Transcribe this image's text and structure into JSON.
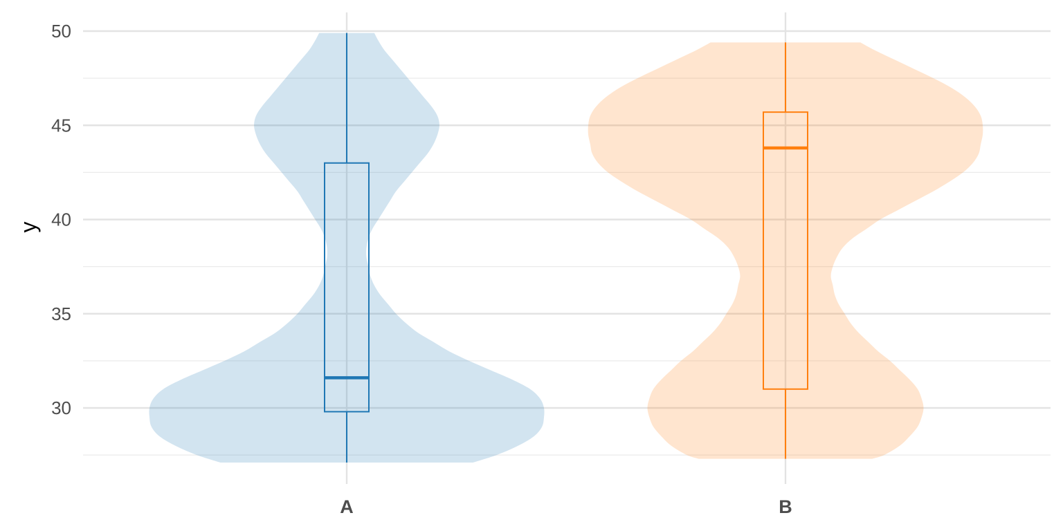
{
  "chart_data": {
    "type": "violin",
    "title": "",
    "xlabel": "",
    "ylabel": "y",
    "ylim": [
      26.2,
      50.6
    ],
    "y_ticks": [
      30,
      35,
      40,
      45,
      50
    ],
    "y_minor_ticks": [
      27.5,
      32.5,
      37.5,
      42.5,
      47.5
    ],
    "grid": true,
    "legend": "none",
    "categories": [
      "A",
      "B"
    ],
    "series": [
      {
        "category": "A",
        "fill_color": "#1f77b4",
        "fill_opacity": 0.2,
        "line_color": "#1f77b4",
        "min": 27.1,
        "q1": 29.8,
        "median": 31.6,
        "q3": 43.0,
        "max": 49.9,
        "density": [
          [
            27.1,
            0.64
          ],
          [
            27.5,
            0.76
          ],
          [
            28.0,
            0.87
          ],
          [
            28.5,
            0.95
          ],
          [
            29.0,
            0.99
          ],
          [
            29.5,
            1.0
          ],
          [
            30.0,
            1.0
          ],
          [
            30.5,
            0.98
          ],
          [
            31.0,
            0.93
          ],
          [
            31.5,
            0.84
          ],
          [
            32.0,
            0.73
          ],
          [
            32.5,
            0.62
          ],
          [
            33.0,
            0.52
          ],
          [
            33.5,
            0.44
          ],
          [
            34.0,
            0.36
          ],
          [
            34.5,
            0.3
          ],
          [
            35.0,
            0.25
          ],
          [
            35.5,
            0.21
          ],
          [
            36.0,
            0.17
          ],
          [
            36.5,
            0.14
          ],
          [
            37.0,
            0.12
          ],
          [
            37.5,
            0.11
          ],
          [
            38.0,
            0.1
          ],
          [
            38.5,
            0.1
          ],
          [
            39.0,
            0.11
          ],
          [
            39.5,
            0.13
          ],
          [
            40.0,
            0.16
          ],
          [
            40.5,
            0.19
          ],
          [
            41.0,
            0.22
          ],
          [
            41.5,
            0.25
          ],
          [
            42.0,
            0.29
          ],
          [
            42.5,
            0.33
          ],
          [
            43.0,
            0.37
          ],
          [
            43.5,
            0.41
          ],
          [
            44.0,
            0.44
          ],
          [
            44.5,
            0.46
          ],
          [
            45.0,
            0.47
          ],
          [
            45.5,
            0.46
          ],
          [
            46.0,
            0.43
          ],
          [
            46.5,
            0.39
          ],
          [
            47.0,
            0.35
          ],
          [
            47.5,
            0.31
          ],
          [
            48.0,
            0.27
          ],
          [
            48.5,
            0.23
          ],
          [
            49.0,
            0.19
          ],
          [
            49.5,
            0.16
          ],
          [
            49.9,
            0.14
          ]
        ]
      },
      {
        "category": "B",
        "fill_color": "#ff7f0e",
        "fill_opacity": 0.2,
        "line_color": "#ff7f0e",
        "min": 27.3,
        "q1": 31.0,
        "median": 43.8,
        "q3": 45.7,
        "max": 49.4,
        "density": [
          [
            27.3,
            0.44
          ],
          [
            27.5,
            0.5
          ],
          [
            28.0,
            0.58
          ],
          [
            28.5,
            0.63
          ],
          [
            29.0,
            0.67
          ],
          [
            29.5,
            0.69
          ],
          [
            30.0,
            0.7
          ],
          [
            30.5,
            0.69
          ],
          [
            31.0,
            0.67
          ],
          [
            31.5,
            0.63
          ],
          [
            32.0,
            0.58
          ],
          [
            32.5,
            0.53
          ],
          [
            33.0,
            0.47
          ],
          [
            33.5,
            0.42
          ],
          [
            34.0,
            0.37
          ],
          [
            34.5,
            0.33
          ],
          [
            35.0,
            0.3
          ],
          [
            35.5,
            0.27
          ],
          [
            36.0,
            0.25
          ],
          [
            36.5,
            0.24
          ],
          [
            37.0,
            0.23
          ],
          [
            37.5,
            0.24
          ],
          [
            38.0,
            0.26
          ],
          [
            38.5,
            0.29
          ],
          [
            39.0,
            0.34
          ],
          [
            39.5,
            0.41
          ],
          [
            40.0,
            0.48
          ],
          [
            40.5,
            0.57
          ],
          [
            41.0,
            0.66
          ],
          [
            41.5,
            0.75
          ],
          [
            42.0,
            0.83
          ],
          [
            42.5,
            0.9
          ],
          [
            43.0,
            0.95
          ],
          [
            43.5,
            0.98
          ],
          [
            44.0,
            0.99
          ],
          [
            44.5,
            1.0
          ],
          [
            45.0,
            1.0
          ],
          [
            45.5,
            0.99
          ],
          [
            46.0,
            0.96
          ],
          [
            46.5,
            0.91
          ],
          [
            47.0,
            0.84
          ],
          [
            47.5,
            0.75
          ],
          [
            48.0,
            0.65
          ],
          [
            48.5,
            0.55
          ],
          [
            49.0,
            0.45
          ],
          [
            49.4,
            0.38
          ]
        ]
      }
    ]
  }
}
